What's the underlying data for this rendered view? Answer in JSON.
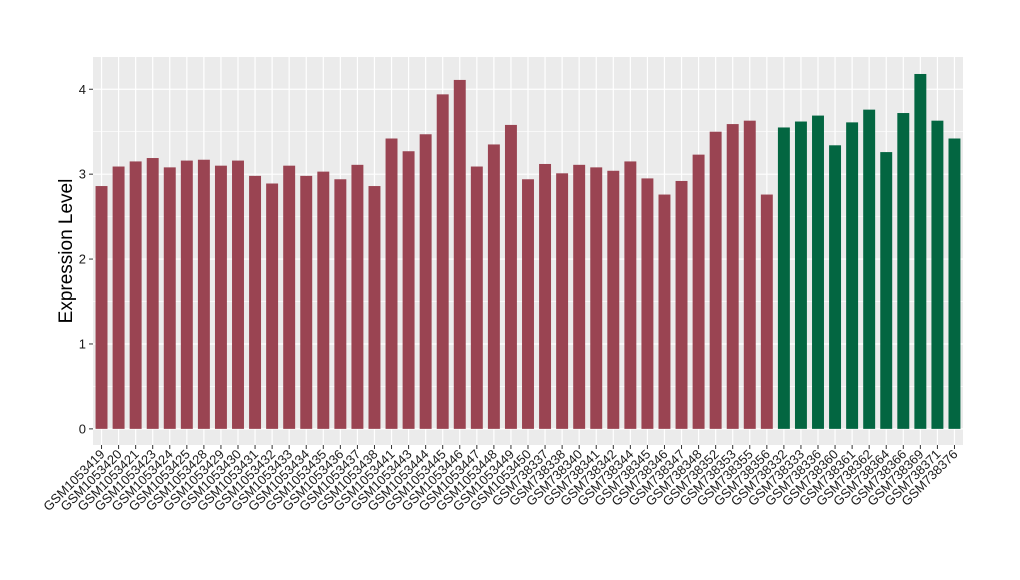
{
  "chart_data": {
    "type": "bar",
    "title": "",
    "xlabel": "",
    "ylabel": "Expression Level",
    "ylim": [
      -0.19,
      4.38
    ],
    "yticks": [
      0,
      1,
      2,
      3,
      4
    ],
    "grid": true,
    "legend": "none",
    "colors": {
      "group_a": "#9a4452",
      "group_b": "#036641",
      "panel": "#ebebeb",
      "gridline": "#ffffff"
    },
    "categories": [
      "GSM1053419",
      "GSM1053420",
      "GSM1053421",
      "GSM1053423",
      "GSM1053424",
      "GSM1053425",
      "GSM1053428",
      "GSM1053429",
      "GSM1053430",
      "GSM1053431",
      "GSM1053432",
      "GSM1053433",
      "GSM1053434",
      "GSM1053435",
      "GSM1053436",
      "GSM1053437",
      "GSM1053438",
      "GSM1053441",
      "GSM1053443",
      "GSM1053444",
      "GSM1053445",
      "GSM1053446",
      "GSM1053447",
      "GSM1053448",
      "GSM1053449",
      "GSM1053450",
      "GSM738337",
      "GSM738338",
      "GSM738340",
      "GSM738341",
      "GSM738342",
      "GSM738344",
      "GSM738345",
      "GSM738346",
      "GSM738347",
      "GSM738348",
      "GSM738352",
      "GSM738353",
      "GSM738355",
      "GSM738356",
      "GSM738332",
      "GSM738333",
      "GSM738336",
      "GSM738360",
      "GSM738361",
      "GSM738362",
      "GSM738364",
      "GSM738366",
      "GSM738369",
      "GSM738371",
      "GSM738376"
    ],
    "values": [
      2.86,
      3.09,
      3.15,
      3.19,
      3.08,
      3.16,
      3.17,
      3.1,
      3.16,
      2.98,
      2.89,
      3.1,
      2.98,
      3.03,
      2.94,
      3.11,
      2.86,
      3.42,
      3.27,
      3.47,
      3.94,
      4.11,
      3.09,
      3.35,
      3.58,
      2.94,
      3.12,
      3.01,
      3.11,
      3.08,
      3.04,
      3.15,
      2.95,
      2.76,
      2.92,
      3.23,
      3.5,
      3.59,
      3.63,
      2.76,
      3.55,
      3.62,
      3.69,
      3.34,
      3.61,
      3.76,
      3.26,
      3.72,
      4.18,
      3.63,
      3.42
    ],
    "groups": [
      "a",
      "a",
      "a",
      "a",
      "a",
      "a",
      "a",
      "a",
      "a",
      "a",
      "a",
      "a",
      "a",
      "a",
      "a",
      "a",
      "a",
      "a",
      "a",
      "a",
      "a",
      "a",
      "a",
      "a",
      "a",
      "a",
      "a",
      "a",
      "a",
      "a",
      "a",
      "a",
      "a",
      "a",
      "a",
      "a",
      "a",
      "a",
      "a",
      "a",
      "b",
      "b",
      "b",
      "b",
      "b",
      "b",
      "b",
      "b",
      "b",
      "b",
      "b"
    ]
  }
}
